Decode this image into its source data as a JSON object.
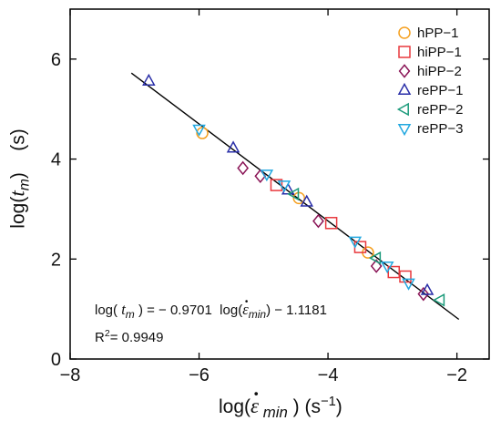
{
  "chart_data": {
    "type": "scatter",
    "xlim": [
      -8,
      -1.5
    ],
    "ylim": [
      0,
      7
    ],
    "x_ticks": [
      -8,
      -6,
      -4,
      -2
    ],
    "y_ticks": [
      0,
      2,
      4,
      6
    ],
    "xlabel": {
      "prefix": "log(",
      "var": "ε",
      "sub": " min",
      "middle": " )  (s",
      "exp": "−1",
      "suffix": ")"
    },
    "ylabel": {
      "prefix": "log(",
      "var": "t",
      "sub": "m",
      "suffix": ")    (s)"
    },
    "legend_position": "top-right",
    "series": [
      {
        "name": "hPP−1",
        "marker": "circle",
        "color": "#f5a020",
        "points": [
          [
            -5.95,
            4.52
          ],
          [
            -4.45,
            3.22
          ],
          [
            -3.38,
            2.13
          ]
        ]
      },
      {
        "name": "hiPP−1",
        "marker": "square",
        "color": "#e8383d",
        "points": [
          [
            -4.8,
            3.48
          ],
          [
            -3.95,
            2.72
          ],
          [
            -3.5,
            2.24
          ],
          [
            -2.98,
            1.74
          ],
          [
            -2.8,
            1.65
          ]
        ]
      },
      {
        "name": "hiPP−2",
        "marker": "diamond",
        "color": "#8a1456",
        "points": [
          [
            -5.32,
            3.82
          ],
          [
            -5.05,
            3.66
          ],
          [
            -4.15,
            2.76
          ],
          [
            -3.25,
            1.86
          ],
          [
            -2.52,
            1.3
          ]
        ]
      },
      {
        "name": "rePP−1",
        "marker": "triangle-up",
        "color": "#2a2fa8",
        "points": [
          [
            -6.78,
            5.56
          ],
          [
            -5.47,
            4.22
          ],
          [
            -4.62,
            3.38
          ],
          [
            -4.33,
            3.14
          ],
          [
            -2.46,
            1.37
          ]
        ]
      },
      {
        "name": "rePP−2",
        "marker": "triangle-left",
        "color": "#1a9a7a",
        "points": [
          [
            -4.52,
            3.3
          ],
          [
            -3.25,
            2.02
          ],
          [
            -2.26,
            1.18
          ]
        ]
      },
      {
        "name": "rePP−3",
        "marker": "triangle-down",
        "color": "#22a8e0",
        "points": [
          [
            -6.0,
            4.6
          ],
          [
            -4.95,
            3.7
          ],
          [
            -4.68,
            3.48
          ],
          [
            -3.58,
            2.36
          ],
          [
            -3.08,
            1.86
          ],
          [
            -2.75,
            1.52
          ]
        ]
      }
    ],
    "fit": {
      "slope": -0.9701,
      "intercept": -1.1181,
      "x_range": [
        -7.05,
        -1.97
      ],
      "color": "#000000"
    },
    "annotation": {
      "eq_prefix": "log( ",
      "eq_t": "t",
      "eq_tsub": "m",
      "eq_mid": " ) = − 0.9701  log(",
      "eq_eps": "ε",
      "eq_epssub": "min",
      "eq_suffix": ") − 1.1181",
      "r2_prefix": "R",
      "r2_sup": "2",
      "r2_suffix": "= 0.9949"
    }
  }
}
